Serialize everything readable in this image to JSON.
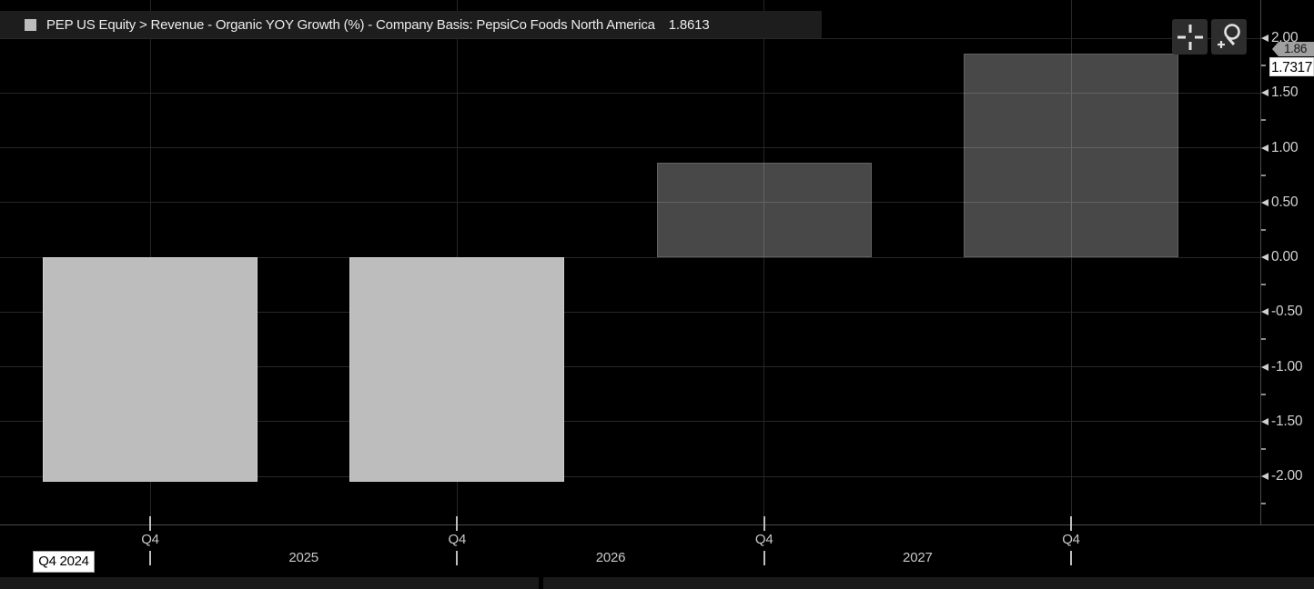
{
  "title_bar": {
    "title": "PEP US Equity > Revenue - Organic YOY Growth (%) - Company Basis: PepsiCo Foods North America",
    "value": "1.8613",
    "legend_color": "#bdbdbd"
  },
  "toolbar": {
    "crosshair_button": "crosshair",
    "zoom_button": "magnifier-zoom"
  },
  "axis_annotations": {
    "series_tag": "1.86",
    "last_value": "1.7317"
  },
  "y_axis": {
    "tick_labels": [
      "2.00",
      "1.50",
      "1.00",
      "0.50",
      "0.00",
      "-0.50",
      "-1.00",
      "-1.50",
      "-2.00"
    ]
  },
  "x_axis": {
    "range_start_label": "Q4 2024",
    "quarter_labels": [
      "Q4",
      "Q4",
      "Q4",
      "Q4"
    ],
    "year_labels": [
      "2025",
      "2026",
      "2027"
    ]
  },
  "chart_data": {
    "type": "bar",
    "title": "PEP US Equity > Revenue - Organic YOY Growth (%) - Company Basis: PepsiCo Foods North America",
    "x_tick_labels": [
      "Q4",
      "Q4",
      "Q4",
      "Q4"
    ],
    "year_labels": [
      "2025",
      "2026",
      "2027"
    ],
    "range_start": "Q4 2024",
    "values": [
      -2.05,
      -2.05,
      0.86,
      1.8613
    ],
    "latest_value": 1.8613,
    "last_price_marker": 1.7317,
    "ylim": [
      -2.44,
      2.35
    ],
    "y_major_step": 0.5,
    "grid": true,
    "legend_position": "top-left",
    "bar_colors": [
      "#bdbdbd",
      "#bdbdbd",
      "rgba(240,240,240,0.30)",
      "rgba(240,240,240,0.30)"
    ],
    "bar_styles": [
      "solid",
      "solid",
      "translucent",
      "translucent"
    ]
  },
  "colors": {
    "background": "#000000",
    "grid": "#272727",
    "axis": "#4a4a4a",
    "label": "#c8c8c8",
    "titlebar_bg": "#1d1d1d",
    "tag_gray_bg": "#a0a0a0",
    "tag_white_bg": "#ffffff"
  }
}
